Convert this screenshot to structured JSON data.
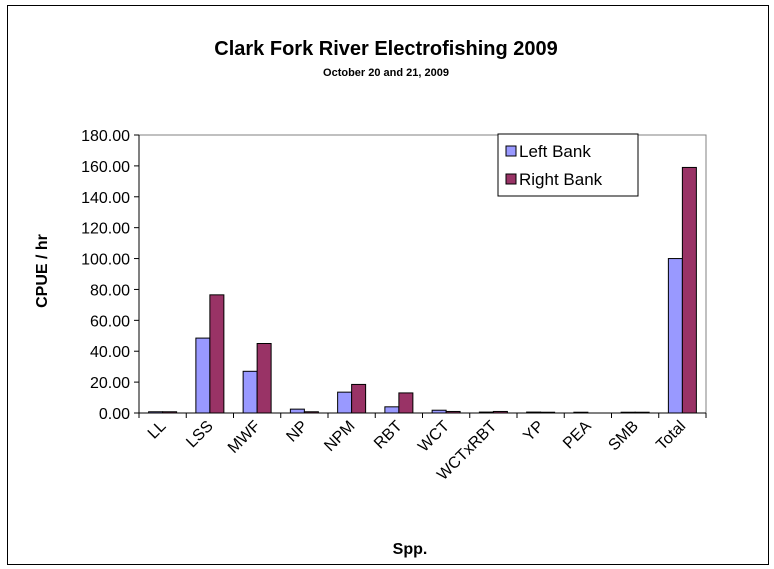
{
  "chart_data": {
    "type": "bar",
    "title": "Clark Fork River Electrofishing 2009",
    "subtitle": "October 20 and 21, 2009",
    "xlabel": "Spp.",
    "ylabel": "CPUE / hr",
    "ylim": [
      0,
      180
    ],
    "yticks": [
      "0.00",
      "20.00",
      "40.00",
      "60.00",
      "80.00",
      "100.00",
      "120.00",
      "140.00",
      "160.00",
      "180.00"
    ],
    "categories": [
      "LL",
      "LSS",
      "MWF",
      "NP",
      "NPM",
      "RBT",
      "WCT",
      "WCTxRBT",
      "YP",
      "PEA",
      "SMB",
      "Total"
    ],
    "series": [
      {
        "name": "Left Bank",
        "color": "#9999ff",
        "values": [
          0.8,
          48.5,
          27.0,
          2.5,
          13.5,
          4.0,
          1.8,
          0.6,
          0.6,
          0.5,
          0.5,
          100.0
        ]
      },
      {
        "name": "Right Bank",
        "color": "#993366",
        "values": [
          0.8,
          76.5,
          45.0,
          0.8,
          18.5,
          13.0,
          1.0,
          1.0,
          0.5,
          0.0,
          0.5,
          159.0
        ]
      }
    ],
    "legend_position": "top-right",
    "grid": false
  }
}
